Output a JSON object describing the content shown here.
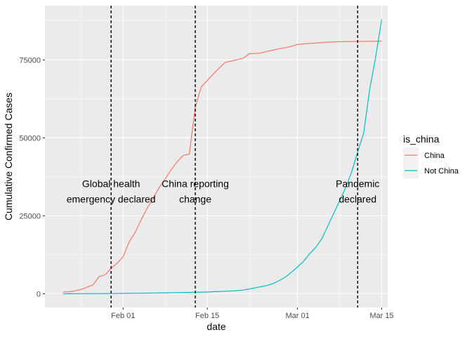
{
  "chart_data": {
    "type": "line",
    "xlabel": "date",
    "ylabel": "Cumulative Confirmed Cases",
    "x_ticks": [
      {
        "date": "2020-02-01",
        "label": "Feb 01"
      },
      {
        "date": "2020-02-15",
        "label": "Feb 15"
      },
      {
        "date": "2020-03-01",
        "label": "Mar 01"
      },
      {
        "date": "2020-03-15",
        "label": "Mar 15"
      }
    ],
    "y_ticks": [
      0,
      25000,
      50000,
      75000
    ],
    "y_tick_labels": [
      "0",
      "25000",
      "50000",
      "75000"
    ],
    "xlim": [
      "2020-01-19",
      "2020-03-16"
    ],
    "ylim": [
      -4400,
      92400
    ],
    "grid": true,
    "legend": {
      "title": "is_china",
      "position": "right",
      "entries": [
        {
          "label": "China",
          "color": "#F8766D"
        },
        {
          "label": "Not China",
          "color": "#00BFC4"
        }
      ]
    },
    "series": [
      {
        "name": "China",
        "color": "#F8766D",
        "points": [
          [
            "2020-01-22",
            548
          ],
          [
            "2020-01-23",
            643
          ],
          [
            "2020-01-24",
            920
          ],
          [
            "2020-01-25",
            1406
          ],
          [
            "2020-01-26",
            2075
          ],
          [
            "2020-01-27",
            2877
          ],
          [
            "2020-01-28",
            5509
          ],
          [
            "2020-01-29",
            6087
          ],
          [
            "2020-01-30",
            8141
          ],
          [
            "2020-01-31",
            9802
          ],
          [
            "2020-02-01",
            11891
          ],
          [
            "2020-02-02",
            16630
          ],
          [
            "2020-02-03",
            19716
          ],
          [
            "2020-02-04",
            23707
          ],
          [
            "2020-02-05",
            27440
          ],
          [
            "2020-02-06",
            30587
          ],
          [
            "2020-02-07",
            34110
          ],
          [
            "2020-02-08",
            36814
          ],
          [
            "2020-02-09",
            39829
          ],
          [
            "2020-02-10",
            42354
          ],
          [
            "2020-02-11",
            44386
          ],
          [
            "2020-02-12",
            44759
          ],
          [
            "2020-02-13",
            59895
          ],
          [
            "2020-02-14",
            66358
          ],
          [
            "2020-02-15",
            68413
          ],
          [
            "2020-02-16",
            70513
          ],
          [
            "2020-02-17",
            72434
          ],
          [
            "2020-02-18",
            74211
          ],
          [
            "2020-02-19",
            74619
          ],
          [
            "2020-02-20",
            75077
          ],
          [
            "2020-02-21",
            75550
          ],
          [
            "2020-02-22",
            77001
          ],
          [
            "2020-02-23",
            77022
          ],
          [
            "2020-02-24",
            77241
          ],
          [
            "2020-02-25",
            77754
          ],
          [
            "2020-02-26",
            78166
          ],
          [
            "2020-02-27",
            78600
          ],
          [
            "2020-02-28",
            78928
          ],
          [
            "2020-02-29",
            79356
          ],
          [
            "2020-03-01",
            79932
          ],
          [
            "2020-03-02",
            80136
          ],
          [
            "2020-03-03",
            80261
          ],
          [
            "2020-03-04",
            80386
          ],
          [
            "2020-03-05",
            80537
          ],
          [
            "2020-03-06",
            80690
          ],
          [
            "2020-03-07",
            80770
          ],
          [
            "2020-03-08",
            80823
          ],
          [
            "2020-03-09",
            80860
          ],
          [
            "2020-03-10",
            80887
          ],
          [
            "2020-03-11",
            80921
          ],
          [
            "2020-03-12",
            80932
          ],
          [
            "2020-03-13",
            80945
          ],
          [
            "2020-03-14",
            80977
          ],
          [
            "2020-03-15",
            81003
          ]
        ]
      },
      {
        "name": "Not China",
        "color": "#00BFC4",
        "points": [
          [
            "2020-01-22",
            7
          ],
          [
            "2020-01-23",
            11
          ],
          [
            "2020-01-24",
            21
          ],
          [
            "2020-01-25",
            28
          ],
          [
            "2020-01-26",
            43
          ],
          [
            "2020-01-27",
            50
          ],
          [
            "2020-01-28",
            64
          ],
          [
            "2020-01-29",
            77
          ],
          [
            "2020-01-30",
            96
          ],
          [
            "2020-01-31",
            113
          ],
          [
            "2020-02-01",
            137
          ],
          [
            "2020-02-02",
            153
          ],
          [
            "2020-02-03",
            171
          ],
          [
            "2020-02-04",
            189
          ],
          [
            "2020-02-05",
            213
          ],
          [
            "2020-02-06",
            228
          ],
          [
            "2020-02-07",
            275
          ],
          [
            "2020-02-08",
            303
          ],
          [
            "2020-02-09",
            330
          ],
          [
            "2020-02-10",
            375
          ],
          [
            "2020-02-11",
            411
          ],
          [
            "2020-02-12",
            441
          ],
          [
            "2020-02-13",
            504
          ],
          [
            "2020-02-14",
            526
          ],
          [
            "2020-02-15",
            586
          ],
          [
            "2020-02-16",
            663
          ],
          [
            "2020-02-17",
            745
          ],
          [
            "2020-02-18",
            816
          ],
          [
            "2020-02-19",
            901
          ],
          [
            "2020-02-20",
            1000
          ],
          [
            "2020-02-21",
            1210
          ],
          [
            "2020-02-22",
            1540
          ],
          [
            "2020-02-23",
            1950
          ],
          [
            "2020-02-24",
            2300
          ],
          [
            "2020-02-25",
            2700
          ],
          [
            "2020-02-26",
            3300
          ],
          [
            "2020-02-27",
            4300
          ],
          [
            "2020-02-28",
            5400
          ],
          [
            "2020-02-29",
            6900
          ],
          [
            "2020-03-01",
            8600
          ],
          [
            "2020-03-02",
            10400
          ],
          [
            "2020-03-03",
            12800
          ],
          [
            "2020-03-04",
            14800
          ],
          [
            "2020-03-05",
            17500
          ],
          [
            "2020-03-06",
            21600
          ],
          [
            "2020-03-07",
            25700
          ],
          [
            "2020-03-08",
            29800
          ],
          [
            "2020-03-09",
            34000
          ],
          [
            "2020-03-10",
            39000
          ],
          [
            "2020-03-11",
            45500
          ],
          [
            "2020-03-12",
            51500
          ],
          [
            "2020-03-13",
            65500
          ],
          [
            "2020-03-14",
            76000
          ],
          [
            "2020-03-15",
            88000
          ]
        ]
      }
    ],
    "vlines": [
      {
        "date": "2020-01-30",
        "label_lines": [
          "Global health",
          "emergency declared"
        ],
        "style": "dashed",
        "color": "#000000"
      },
      {
        "date": "2020-02-13",
        "label_lines": [
          "China reporting",
          "change"
        ],
        "style": "dashed",
        "color": "#000000"
      },
      {
        "date": "2020-03-11",
        "label_lines": [
          "Pandemic",
          "declared"
        ],
        "style": "dashed",
        "color": "#000000"
      }
    ]
  }
}
